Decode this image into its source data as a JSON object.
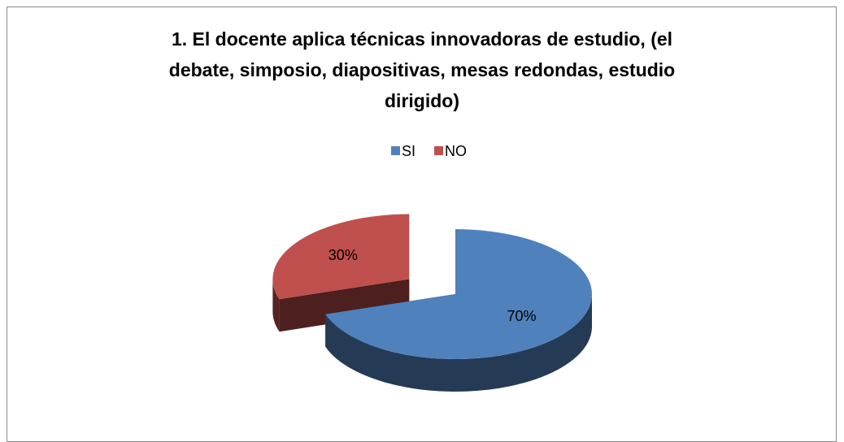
{
  "chart_data": {
    "type": "pie3d",
    "title": [
      "1. El docente aplica técnicas innovadoras de estudio, (el",
      "debate, simposio, diapositivas, mesas redondas, estudio",
      "dirigido)"
    ],
    "categories": [
      "SI",
      "NO"
    ],
    "values": [
      70,
      30
    ],
    "value_labels": [
      "70%",
      "30%"
    ],
    "colors": [
      "#4f81bd",
      "#c0504d"
    ],
    "legend": "top"
  }
}
